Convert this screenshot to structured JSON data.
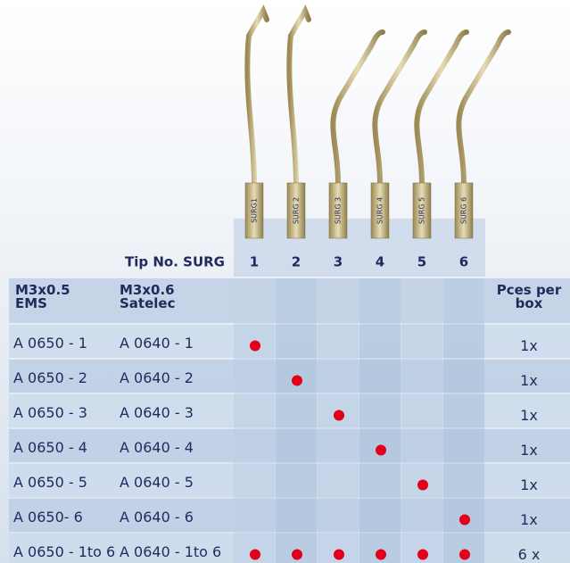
{
  "tips": {
    "labels": [
      "SURG1",
      "SURG 2",
      "SURG 3",
      "SURG 4",
      "SURG 5",
      "SURG 6"
    ]
  },
  "table": {
    "tip_header": "Tip No. SURG",
    "tip_numbers": [
      "1",
      "2",
      "3",
      "4",
      "5",
      "6"
    ],
    "col_ems": "M3x0.5\nEMS",
    "col_satelec": "M3x0.6\nSatelec",
    "col_pcs": "Pces per\nbox",
    "rows": [
      {
        "ems": "A 0650 - 1",
        "satelec": "A 0640 - 1",
        "dots": [
          true,
          false,
          false,
          false,
          false,
          false
        ],
        "pcs": "1x"
      },
      {
        "ems": "A 0650 - 2",
        "satelec": "A 0640 - 2",
        "dots": [
          false,
          true,
          false,
          false,
          false,
          false
        ],
        "pcs": "1x"
      },
      {
        "ems": "A 0650 - 3",
        "satelec": "A 0640 - 3",
        "dots": [
          false,
          false,
          true,
          false,
          false,
          false
        ],
        "pcs": "1x"
      },
      {
        "ems": "A 0650 - 4",
        "satelec": "A 0640 - 4",
        "dots": [
          false,
          false,
          false,
          true,
          false,
          false
        ],
        "pcs": "1x"
      },
      {
        "ems": "A 0650 - 5",
        "satelec": "A 0640 - 5",
        "dots": [
          false,
          false,
          false,
          false,
          true,
          false
        ],
        "pcs": "1x"
      },
      {
        "ems": "A 0650- 6",
        "satelec": "A 0640 - 6",
        "dots": [
          false,
          false,
          false,
          false,
          false,
          true
        ],
        "pcs": "1x"
      },
      {
        "ems": "A 0650 - 1to 6",
        "satelec": "A 0640 - 1to 6",
        "dots": [
          true,
          true,
          true,
          true,
          true,
          true
        ],
        "pcs": "6 x"
      }
    ]
  }
}
